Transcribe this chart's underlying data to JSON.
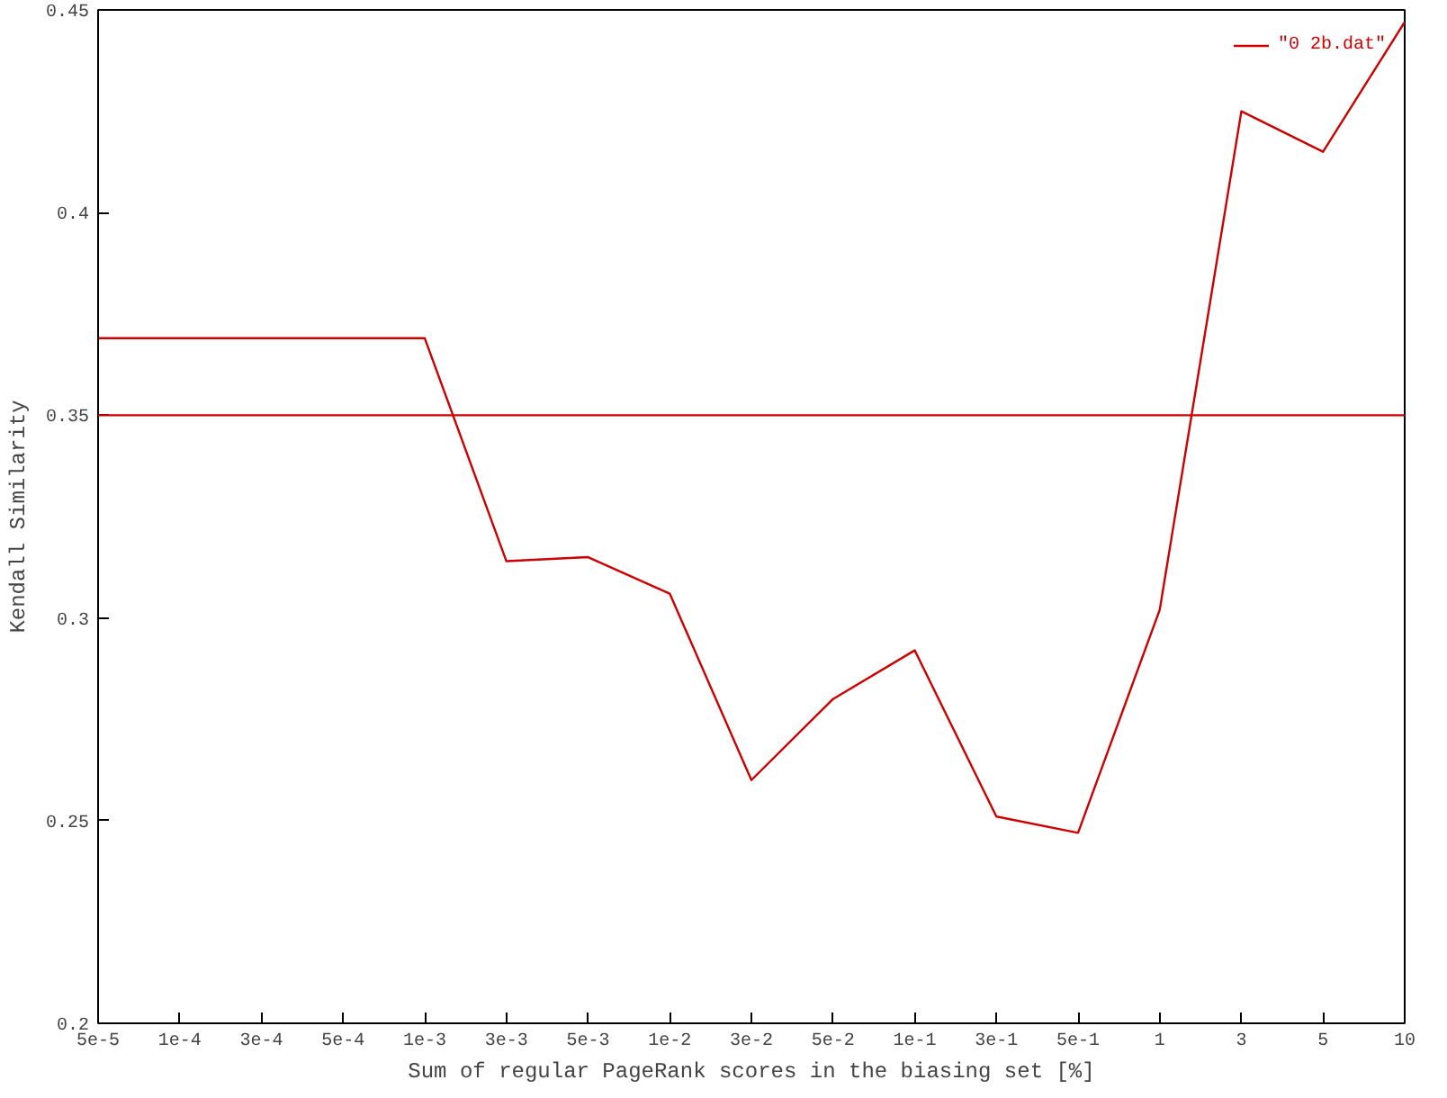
{
  "chart_data": {
    "type": "line",
    "xlabel": "Sum of regular PageRank scores in the biasing set [%]",
    "ylabel": "Kendall Similarity",
    "categories": [
      "5e-5",
      "1e-4",
      "3e-4",
      "5e-4",
      "1e-3",
      "3e-3",
      "5e-3",
      "1e-2",
      "3e-2",
      "5e-2",
      "1e-1",
      "3e-1",
      "5e-1",
      "1",
      "3",
      "5",
      "10"
    ],
    "series": [
      {
        "name": "\"0 2b.dat\"",
        "color": "#cc0000",
        "values": [
          0.369,
          0.369,
          0.369,
          0.369,
          0.369,
          0.314,
          0.315,
          0.306,
          0.26,
          0.28,
          0.292,
          0.251,
          0.247,
          0.302,
          0.425,
          0.415,
          0.447
        ]
      }
    ],
    "ref_lines": [
      {
        "axis": "y",
        "value": 0.35,
        "color": "#cc0000"
      }
    ],
    "ylim": [
      0.2,
      0.45
    ],
    "yticks": [
      0.2,
      0.25,
      0.3,
      0.35,
      0.4,
      0.45
    ],
    "legend": "top right",
    "grid": false,
    "marker": "none",
    "line_style": "solid"
  }
}
